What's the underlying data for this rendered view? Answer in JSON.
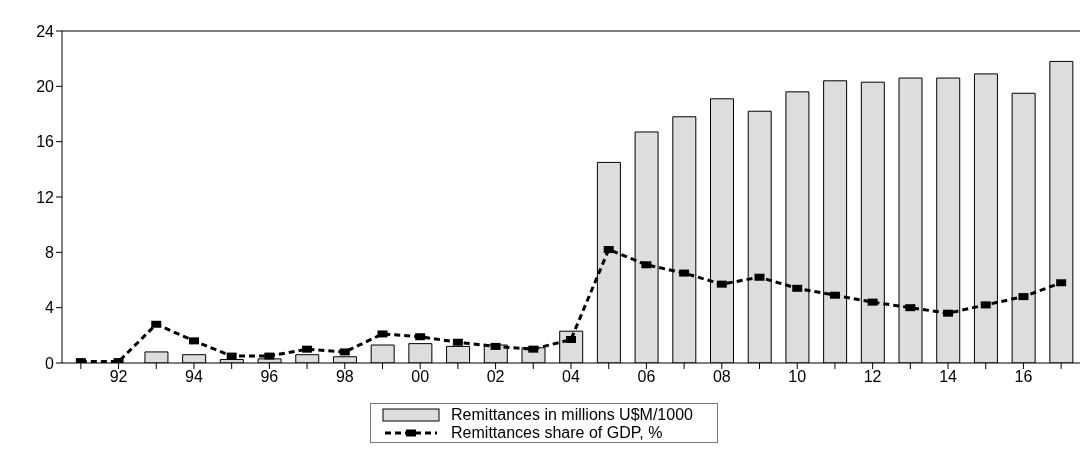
{
  "chart_data": {
    "type": "bar",
    "categories": [
      null,
      "92",
      null,
      "94",
      null,
      "96",
      null,
      "98",
      null,
      "00",
      null,
      "02",
      null,
      "04",
      null,
      "06",
      null,
      "08",
      null,
      "10",
      null,
      "12",
      null,
      "14",
      null,
      "16",
      null
    ],
    "series": [
      {
        "name": "Remittances in millions U$M/1000",
        "color": "#dddddd",
        "values": [
          null,
          null,
          0.8,
          0.6,
          0.25,
          0.3,
          0.6,
          0.45,
          1.3,
          1.4,
          1.2,
          1.3,
          1.1,
          2.3,
          14.5,
          16.7,
          17.8,
          19.1,
          18.2,
          19.6,
          20.4,
          20.3,
          20.6,
          20.6,
          20.9,
          19.5,
          21.8
        ]
      },
      {
        "name": "Remittances share of GDP, %",
        "type": "line",
        "color": "#000000",
        "marker": "square",
        "line_style": "dashed",
        "values": [
          0.1,
          0.1,
          2.8,
          1.6,
          0.5,
          0.5,
          1.0,
          0.8,
          2.1,
          1.9,
          1.5,
          1.2,
          1.0,
          1.7,
          8.2,
          7.1,
          6.5,
          5.7,
          6.2,
          5.4,
          4.9,
          4.4,
          4.0,
          3.6,
          4.2,
          4.8,
          5.8
        ]
      }
    ],
    "ylim": [
      0,
      24
    ],
    "yticks": [
      0,
      4,
      8,
      12,
      16,
      20,
      24
    ],
    "legend": "bottom"
  }
}
